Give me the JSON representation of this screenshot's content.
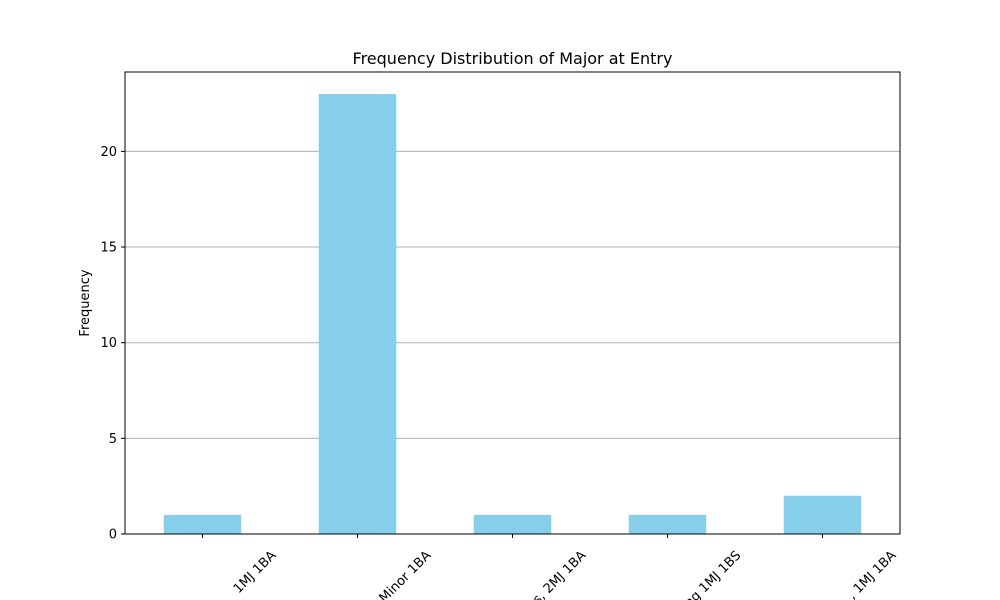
{
  "chart_data": {
    "type": "bar",
    "title": "Frequency Distribution of Major at Entry",
    "xlabel": "",
    "ylabel": "Frequency",
    "categories": [
      "1MJ 1BA",
      "Minor 1BA",
      "s, 2MJ 1BA",
      "ng 1MJ 1BS",
      ", 1MJ 1BA"
    ],
    "values": [
      1,
      23,
      1,
      1,
      2
    ],
    "ylim": [
      0,
      24.15
    ],
    "yticks": [
      0,
      5,
      10,
      15,
      20
    ],
    "grid": "y",
    "bar_color": "#87CEEB",
    "grid_color": "#b0b0b0"
  }
}
